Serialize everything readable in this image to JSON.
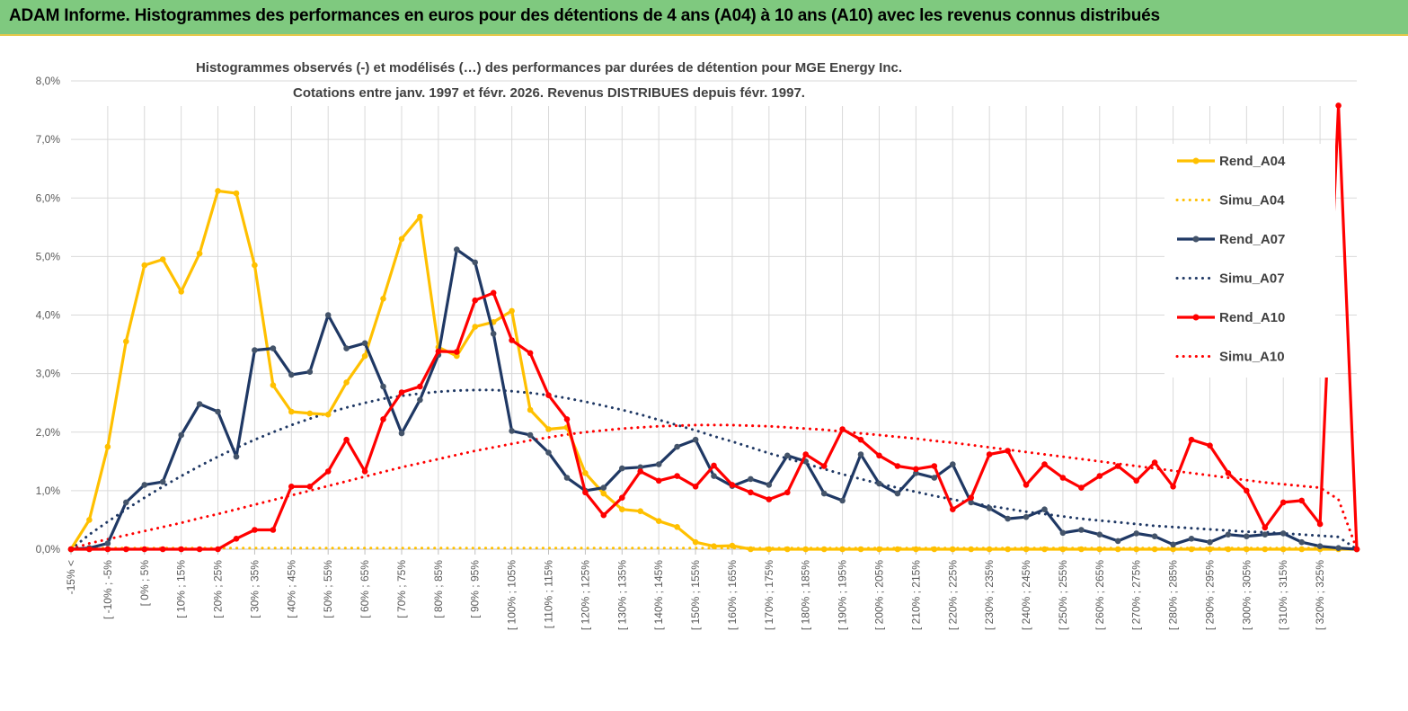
{
  "banner": {
    "title": "ADAM Informe. Histogrammes des performances en euros pour des détentions de 4 ans (A04) à 10 ans (A10) avec les revenus connus distribués"
  },
  "colors": {
    "A04": "#ffc000",
    "A07": "#1f3864",
    "A10": "#ff0000",
    "banner_bg": "#7fc97f",
    "grid": "#d9d9d9"
  },
  "chart_data": {
    "type": "line",
    "title": "Histogrammes observés (-) et modélisés (…)  des performances par durées de détention pour MGE Energy Inc.",
    "subtitle": "Cotations entre janv. 1997 et févr. 2026. Revenus DISTRIBUES depuis févr. 1997.",
    "ylim": [
      0,
      8
    ],
    "y_ticks": [
      "0,0%",
      "1,0%",
      "2,0%",
      "3,0%",
      "4,0%",
      "5,0%",
      "6,0%",
      "7,0%",
      "8,0%"
    ],
    "grid": true,
    "legend_position": "right",
    "x_tick_labels": [
      "-15% <",
      "[ -10% ; -5%",
      "[ 0% ; 5%",
      "[ 10% ; 15%",
      "[ 20% ; 25%",
      "[ 30% ; 35%",
      "[ 40% ; 45%",
      "[ 50% ; 55%",
      "[ 60% ; 65%",
      "[ 70% ; 75%",
      "[ 80% ; 85%",
      "[ 90% ; 95%",
      "[ 100% ; 105%",
      "[ 110% ; 115%",
      "[ 120% ; 125%",
      "[ 130% ; 135%",
      "[ 140% ; 145%",
      "[ 150% ; 155%",
      "[ 160% ; 165%",
      "[ 170% ; 175%",
      "[ 180% ; 185%",
      "[ 190% ; 195%",
      "[ 200% ; 205%",
      "[ 210% ; 215%",
      "[ 220% ; 225%",
      "[ 230% ; 235%",
      "[ 240% ; 245%",
      "[ 250% ; 255%",
      "[ 260% ; 265%",
      "[ 270% ; 275%",
      "[ 280% ; 285%",
      "[ 290% ; 295%",
      "[ 300% ; 305%",
      "[ 310% ; 315%",
      "[ 320% ; 325%"
    ],
    "series": [
      {
        "name": "Rend_A04",
        "style": "solid",
        "color": "#ffc000",
        "values": [
          0,
          0.5,
          1.75,
          3.55,
          4.85,
          4.95,
          4.4,
          5.05,
          6.12,
          6.08,
          4.85,
          2.8,
          2.35,
          2.32,
          2.3,
          2.85,
          3.3,
          4.28,
          5.3,
          5.68,
          3.45,
          3.3,
          3.8,
          3.88,
          4.07,
          2.38,
          2.05,
          2.08,
          1.3,
          0.95,
          0.68,
          0.65,
          0.48,
          0.38,
          0.12,
          0.05,
          0.06,
          0,
          0,
          0,
          0,
          0,
          0,
          0,
          0,
          0,
          0,
          0,
          0,
          0,
          0,
          0,
          0,
          0,
          0,
          0,
          0,
          0,
          0,
          0,
          0,
          0,
          0,
          0,
          0,
          0,
          0,
          0,
          0,
          0,
          0
        ]
      },
      {
        "name": "Simu_A04",
        "style": "dotted",
        "color": "#ffc000",
        "values": [
          0,
          0.02,
          0.02,
          0.02,
          0.02,
          0.02,
          0.02,
          0.02,
          0.02,
          0.02,
          0.02,
          0.02,
          0.02,
          0.02,
          0.02,
          0.02,
          0.02,
          0.02,
          0.02,
          0.02,
          0.02,
          0.02,
          0.02,
          0.02,
          0.02,
          0.02,
          0.02,
          0.02,
          0.02,
          0.02,
          0.02,
          0.02,
          0.02,
          0.02,
          0.02,
          0.02,
          0.02,
          0.02,
          0.02,
          0.02,
          0.02,
          0.02,
          0.02,
          0.02,
          0.02,
          0.02,
          0.02,
          0.02,
          0.02,
          0.02,
          0.02,
          0.02,
          0.02,
          0.02,
          0.02,
          0.02,
          0.02,
          0.02,
          0.02,
          0.02,
          0.02,
          0.02,
          0.02,
          0.02,
          0.02,
          0.02,
          0.02,
          0.02,
          0.02,
          0.02,
          0
        ]
      },
      {
        "name": "Rend_A07",
        "style": "solid",
        "color": "#1f3864",
        "values": [
          0,
          0.02,
          0.1,
          0.8,
          1.1,
          1.15,
          1.95,
          2.48,
          2.35,
          1.58,
          3.4,
          3.43,
          2.98,
          3.03,
          4.0,
          3.43,
          3.52,
          2.78,
          1.98,
          2.55,
          3.32,
          5.12,
          4.9,
          3.68,
          2.02,
          1.95,
          1.65,
          1.22,
          1.0,
          1.05,
          1.38,
          1.4,
          1.45,
          1.75,
          1.87,
          1.25,
          1.08,
          1.2,
          1.1,
          1.6,
          1.5,
          0.95,
          0.83,
          1.62,
          1.12,
          0.95,
          1.3,
          1.22,
          1.45,
          0.8,
          0.7,
          0.52,
          0.55,
          0.68,
          0.28,
          0.33,
          0.25,
          0.14,
          0.27,
          0.22,
          0.08,
          0.18,
          0.12,
          0.25,
          0.22,
          0.25,
          0.27,
          0.12,
          0.05,
          0.02,
          0
        ]
      },
      {
        "name": "Simu_A07",
        "style": "dotted",
        "color": "#1f3864",
        "values": [
          0,
          0.25,
          0.47,
          0.68,
          0.88,
          1.07,
          1.25,
          1.42,
          1.58,
          1.73,
          1.87,
          2.0,
          2.12,
          2.23,
          2.33,
          2.42,
          2.5,
          2.57,
          2.62,
          2.66,
          2.69,
          2.71,
          2.72,
          2.72,
          2.7,
          2.67,
          2.63,
          2.58,
          2.52,
          2.45,
          2.38,
          2.3,
          2.21,
          2.12,
          2.03,
          1.93,
          1.84,
          1.74,
          1.64,
          1.55,
          1.46,
          1.37,
          1.28,
          1.2,
          1.12,
          1.05,
          0.98,
          0.91,
          0.85,
          0.79,
          0.74,
          0.69,
          0.64,
          0.6,
          0.56,
          0.52,
          0.49,
          0.46,
          0.43,
          0.4,
          0.38,
          0.36,
          0.34,
          0.32,
          0.3,
          0.29,
          0.27,
          0.25,
          0.23,
          0.21,
          0
        ]
      },
      {
        "name": "Rend_A10",
        "style": "solid",
        "color": "#ff0000",
        "values": [
          0,
          0,
          0,
          0,
          0,
          0,
          0,
          0,
          0,
          0.18,
          0.33,
          0.33,
          1.07,
          1.07,
          1.33,
          1.87,
          1.33,
          2.22,
          2.68,
          2.78,
          3.38,
          3.37,
          4.25,
          4.38,
          3.57,
          3.35,
          2.63,
          2.22,
          0.97,
          0.58,
          0.88,
          1.33,
          1.17,
          1.25,
          1.07,
          1.43,
          1.1,
          0.97,
          0.85,
          0.97,
          1.62,
          1.42,
          2.05,
          1.87,
          1.6,
          1.42,
          1.37,
          1.42,
          0.68,
          0.88,
          1.62,
          1.68,
          1.1,
          1.45,
          1.22,
          1.05,
          1.25,
          1.42,
          1.17,
          1.48,
          1.07,
          1.87,
          1.77,
          1.3,
          1.0,
          0.37,
          0.8,
          0.83,
          0.43,
          7.58,
          0
        ]
      },
      {
        "name": "Simu_A10",
        "style": "dotted",
        "color": "#ff0000",
        "values": [
          0,
          0.1,
          0.17,
          0.24,
          0.31,
          0.38,
          0.45,
          0.53,
          0.6,
          0.68,
          0.76,
          0.84,
          0.92,
          1.0,
          1.08,
          1.16,
          1.24,
          1.32,
          1.4,
          1.47,
          1.54,
          1.61,
          1.68,
          1.74,
          1.8,
          1.86,
          1.91,
          1.96,
          2.0,
          2.03,
          2.06,
          2.08,
          2.1,
          2.11,
          2.12,
          2.12,
          2.12,
          2.11,
          2.1,
          2.08,
          2.06,
          2.04,
          2.01,
          1.98,
          1.95,
          1.92,
          1.89,
          1.85,
          1.82,
          1.78,
          1.74,
          1.7,
          1.66,
          1.62,
          1.58,
          1.54,
          1.5,
          1.46,
          1.42,
          1.38,
          1.34,
          1.3,
          1.26,
          1.22,
          1.18,
          1.14,
          1.11,
          1.08,
          1.05,
          0.85,
          0
        ]
      }
    ]
  }
}
